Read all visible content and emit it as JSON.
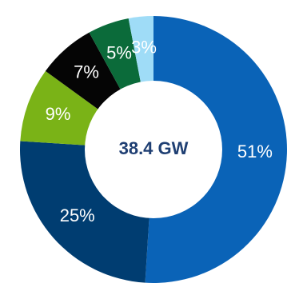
{
  "chart_data": {
    "type": "pie",
    "variant": "donut",
    "center_text": "38.4 GW",
    "slices": [
      {
        "value": 51,
        "label": "51%",
        "color": "#0a63b7"
      },
      {
        "value": 25,
        "label": "25%",
        "color": "#003d71"
      },
      {
        "value": 9,
        "label": "9%",
        "color": "#7ab317"
      },
      {
        "value": 7,
        "label": "7%",
        "color": "#050505"
      },
      {
        "value": 5,
        "label": "5%",
        "color": "#0b6b3a"
      },
      {
        "value": 3,
        "label": "3%",
        "color": "#9fdcf7"
      }
    ],
    "legend": false,
    "grid": false
  }
}
